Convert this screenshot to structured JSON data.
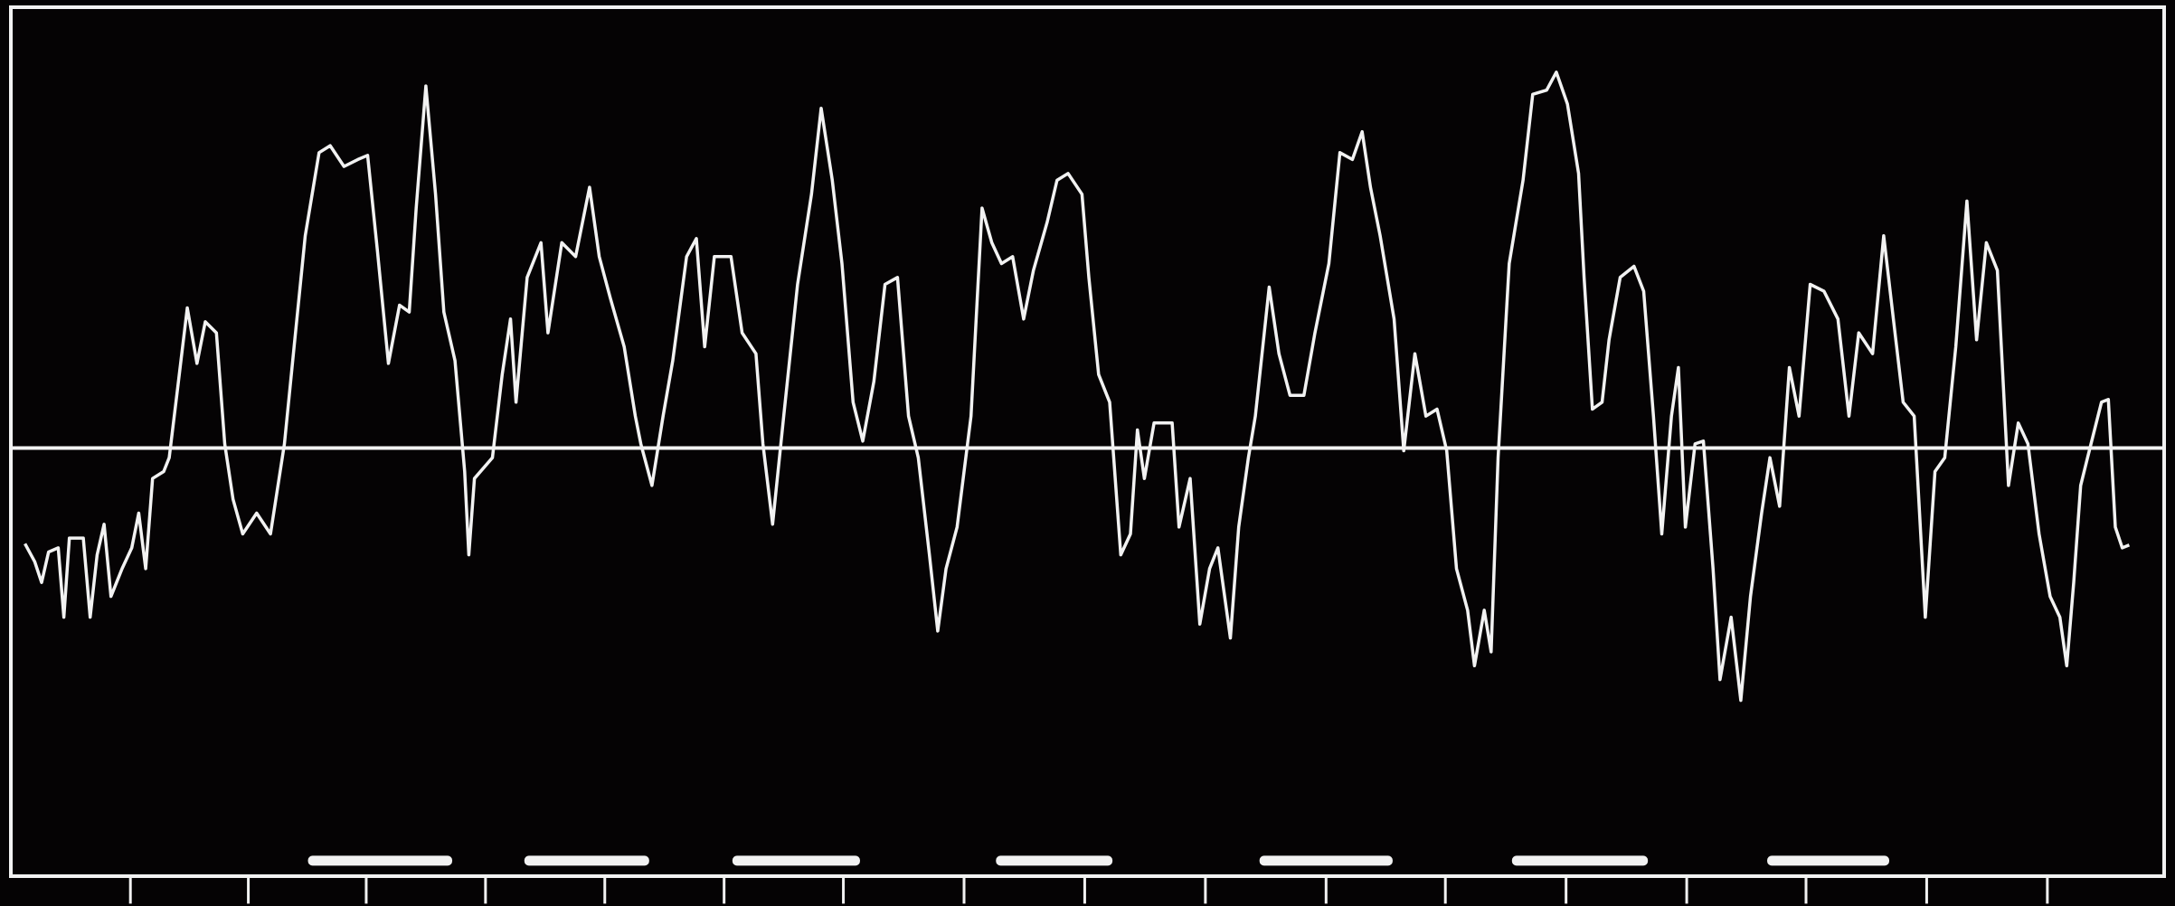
{
  "chart_data": {
    "type": "line",
    "color": "#f2f2f2",
    "background": "#050304",
    "xlim": [
      0,
      1552
    ],
    "ylim": [
      0,
      627
    ],
    "baseline": 309,
    "xticks": [
      86,
      171,
      256,
      342,
      428,
      514,
      600,
      687,
      774,
      861,
      948,
      1034,
      1121,
      1208,
      1294,
      1381,
      1468
    ],
    "segments": [
      [
        214,
        318
      ],
      [
        370,
        460
      ],
      [
        520,
        612
      ],
      [
        710,
        794
      ],
      [
        900,
        996
      ],
      [
        1082,
        1180
      ],
      [
        1266,
        1354
      ]
    ],
    "x": [
      10,
      17,
      22,
      27,
      34,
      38,
      42,
      52,
      57,
      62,
      67,
      72,
      80,
      87,
      92,
      97,
      102,
      110,
      114,
      120,
      127,
      134,
      140,
      148,
      154,
      160,
      167,
      177,
      187,
      197,
      204,
      212,
      222,
      230,
      240,
      250,
      257,
      264,
      272,
      280,
      287,
      292,
      299,
      306,
      312,
      320,
      327,
      330,
      334,
      347,
      354,
      360,
      364,
      372,
      382,
      387,
      397,
      407,
      417,
      424,
      432,
      442,
      450,
      454,
      462,
      470,
      477,
      487,
      494,
      500,
      507,
      519,
      527,
      537,
      542,
      549,
      557,
      567,
      577,
      584,
      592,
      599,
      607,
      614,
      622,
      630,
      639,
      647,
      654,
      662,
      668,
      674,
      682,
      692,
      700,
      707,
      714,
      722,
      730,
      737,
      747,
      754,
      762,
      772,
      777,
      784,
      792,
      800,
      807,
      812,
      817,
      824,
      837,
      842,
      850,
      857,
      864,
      870,
      879,
      885,
      892,
      897,
      907,
      914,
      922,
      932,
      940,
      950,
      958,
      967,
      974,
      980,
      987,
      997,
      1004,
      1012,
      1020,
      1028,
      1035,
      1042,
      1050,
      1055,
      1062,
      1067,
      1072,
      1080,
      1090,
      1097,
      1107,
      1114,
      1122,
      1130,
      1134,
      1140,
      1147,
      1152,
      1160,
      1170,
      1177,
      1184,
      1190,
      1197,
      1202,
      1207,
      1214,
      1220,
      1227,
      1232,
      1240,
      1247,
      1254,
      1262,
      1268,
      1275,
      1282,
      1289,
      1297,
      1307,
      1317,
      1325,
      1332,
      1342,
      1350,
      1357,
      1364,
      1372,
      1380,
      1387,
      1394,
      1402,
      1410,
      1417,
      1424,
      1432,
      1440,
      1447,
      1454,
      1462,
      1470,
      1477,
      1482,
      1487,
      1492,
      1497,
      1507,
      1512,
      1517,
      1522,
      1527
    ],
    "values": [
      240,
      227,
      212,
      234,
      237,
      187,
      244,
      244,
      187,
      232,
      254,
      202,
      222,
      237,
      262,
      222,
      287,
      292,
      302,
      352,
      410,
      370,
      400,
      392,
      312,
      272,
      247,
      262,
      247,
      312,
      382,
      462,
      522,
      527,
      512,
      517,
      520,
      452,
      370,
      412,
      407,
      482,
      570,
      492,
      407,
      372,
      292,
      232,
      287,
      302,
      362,
      402,
      342,
      432,
      457,
      392,
      457,
      447,
      497,
      447,
      417,
      382,
      332,
      312,
      282,
      332,
      372,
      447,
      460,
      382,
      447,
      447,
      392,
      377,
      312,
      254,
      332,
      427,
      492,
      554,
      502,
      442,
      342,
      314,
      357,
      427,
      432,
      332,
      302,
      232,
      177,
      222,
      252,
      332,
      482,
      457,
      442,
      447,
      402,
      437,
      472,
      502,
      507,
      492,
      432,
      362,
      342,
      232,
      247,
      322,
      287,
      327,
      327,
      252,
      287,
      182,
      222,
      237,
      172,
      252,
      302,
      332,
      425,
      377,
      347,
      347,
      392,
      442,
      522,
      517,
      537,
      497,
      462,
      402,
      307,
      377,
      332,
      337,
      307,
      222,
      192,
      152,
      192,
      162,
      302,
      442,
      502,
      564,
      567,
      580,
      557,
      507,
      432,
      337,
      342,
      387,
      432,
      440,
      422,
      332,
      247,
      332,
      367,
      252,
      312,
      314,
      222,
      142,
      187,
      127,
      202,
      262,
      302,
      267,
      367,
      332,
      427,
      422,
      402,
      332,
      392,
      377,
      462,
      402,
      342,
      332,
      187,
      292,
      302,
      382,
      487,
      387,
      457,
      437,
      282,
      327,
      312,
      247,
      202,
      187,
      152,
      212,
      282,
      302,
      342,
      344,
      252,
      237,
      239
    ]
  }
}
